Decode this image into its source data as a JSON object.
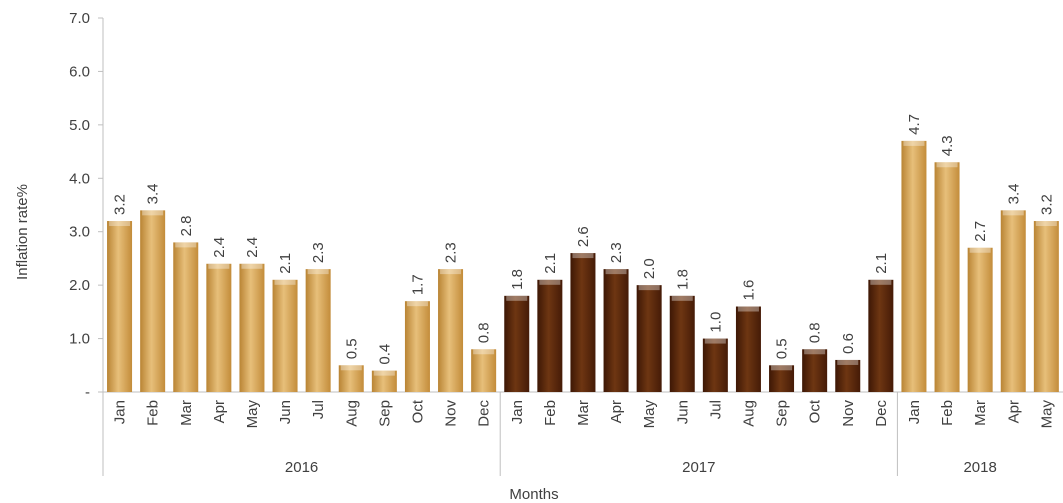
{
  "chart_data": {
    "type": "bar",
    "ylabel": "Inflation rate%",
    "xlabel": "Months",
    "ylim": [
      0,
      7
    ],
    "yticks": [
      "-",
      "1.0",
      "2.0",
      "3.0",
      "4.0",
      "5.0",
      "6.0",
      "7.0"
    ],
    "grid": false,
    "legend": "none",
    "groups": [
      {
        "year": "2016",
        "color": "#d9a95c",
        "categories": [
          "Jan",
          "Feb",
          "Mar",
          "Apr",
          "May",
          "Jun",
          "Jul",
          "Aug",
          "Sep",
          "Oct",
          "Nov",
          "Dec"
        ],
        "values": [
          3.2,
          3.4,
          2.8,
          2.4,
          2.4,
          2.1,
          2.3,
          0.5,
          0.4,
          1.7,
          2.3,
          0.8
        ],
        "labels": [
          "3.2",
          "3.4",
          "2.8",
          "2.4",
          "2.4",
          "2.1",
          "2.3",
          "0.5",
          "0.4",
          "1.7",
          "2.3",
          "0.8"
        ]
      },
      {
        "year": "2017",
        "color": "#5a2a0c",
        "categories": [
          "Jan",
          "Feb",
          "Mar",
          "Apr",
          "May",
          "Jun",
          "Jul",
          "Aug",
          "Sep",
          "Oct",
          "Nov",
          "Dec"
        ],
        "values": [
          1.8,
          2.1,
          2.6,
          2.3,
          2.0,
          1.8,
          1.0,
          1.6,
          0.5,
          0.8,
          0.6,
          2.1
        ],
        "labels": [
          "1.8",
          "2.1",
          "2.6",
          "2.3",
          "2.0",
          "1.8",
          "1.0",
          "1.6",
          "0.5",
          "0.8",
          "0.6",
          "2.1"
        ]
      },
      {
        "year": "2018",
        "color": "#d9a95c",
        "categories": [
          "Jan",
          "Feb",
          "Mar",
          "Apr",
          "May"
        ],
        "values": [
          4.7,
          4.3,
          2.7,
          3.4,
          3.2
        ],
        "labels": [
          "4.7",
          "4.3",
          "2.7",
          "3.4",
          "3.2"
        ]
      }
    ]
  }
}
